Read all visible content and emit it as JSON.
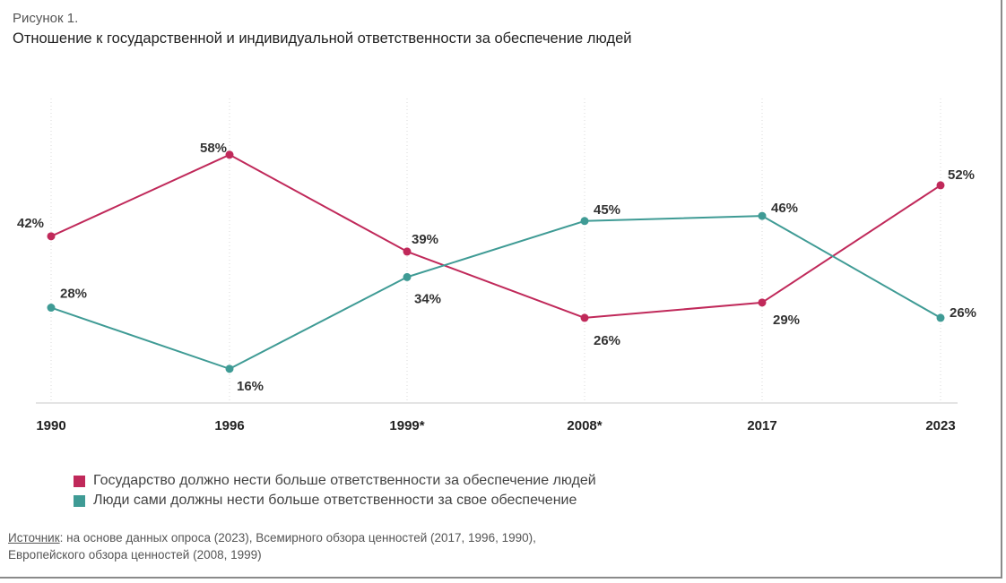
{
  "figure": {
    "label": "Рисунок 1.",
    "title": "Отношение к государственной и индивидуальной ответственности за обеспечение людей"
  },
  "chart_data": {
    "type": "line",
    "categories": [
      "1990",
      "1996",
      "1999*",
      "2008*",
      "2017",
      "2023"
    ],
    "ylim": [
      10,
      62
    ],
    "grid": "vertical dotted",
    "legend_position": "bottom-left",
    "series": [
      {
        "name": "Государство должно нести больше ответственности за обеспечение людей",
        "color": "#c0295a",
        "values": [
          42,
          58,
          39,
          26,
          29,
          52
        ],
        "labels": [
          "42%",
          "58%",
          "39%",
          "26%",
          "29%",
          "52%"
        ]
      },
      {
        "name": "Люди сами должны нести больше ответственности за свое обеспечение",
        "color": "#3f9b95",
        "values": [
          28,
          16,
          34,
          45,
          46,
          26
        ],
        "labels": [
          "28%",
          "16%",
          "34%",
          "45%",
          "46%",
          "26%"
        ]
      }
    ]
  },
  "legend": {
    "items": [
      {
        "label": "Государство должно нести больше ответственности за обеспечение людей",
        "color": "#c0295a"
      },
      {
        "label": "Люди сами должны нести больше ответственности за свое обеспечение",
        "color": "#3f9b95"
      }
    ]
  },
  "source": {
    "label": "Источник",
    "text": ": на основе данных опроса (2023), Всемирного обзора ценностей (2017, 1996, 1990),",
    "text2": "Европейского обзора ценностей (2008, 1999)"
  }
}
